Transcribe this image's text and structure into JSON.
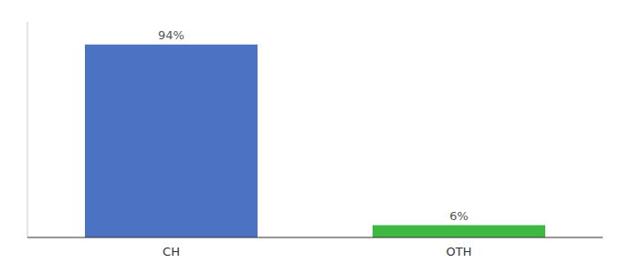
{
  "chart_data": {
    "type": "bar",
    "categories": [
      "CH",
      "OTH"
    ],
    "values": [
      94,
      6
    ],
    "value_labels": [
      "94%",
      "6%"
    ],
    "colors": [
      "#4c72c4",
      "#3cb843"
    ],
    "ylim": [
      0,
      105
    ],
    "data_labels": true,
    "tick_labels": "x"
  }
}
